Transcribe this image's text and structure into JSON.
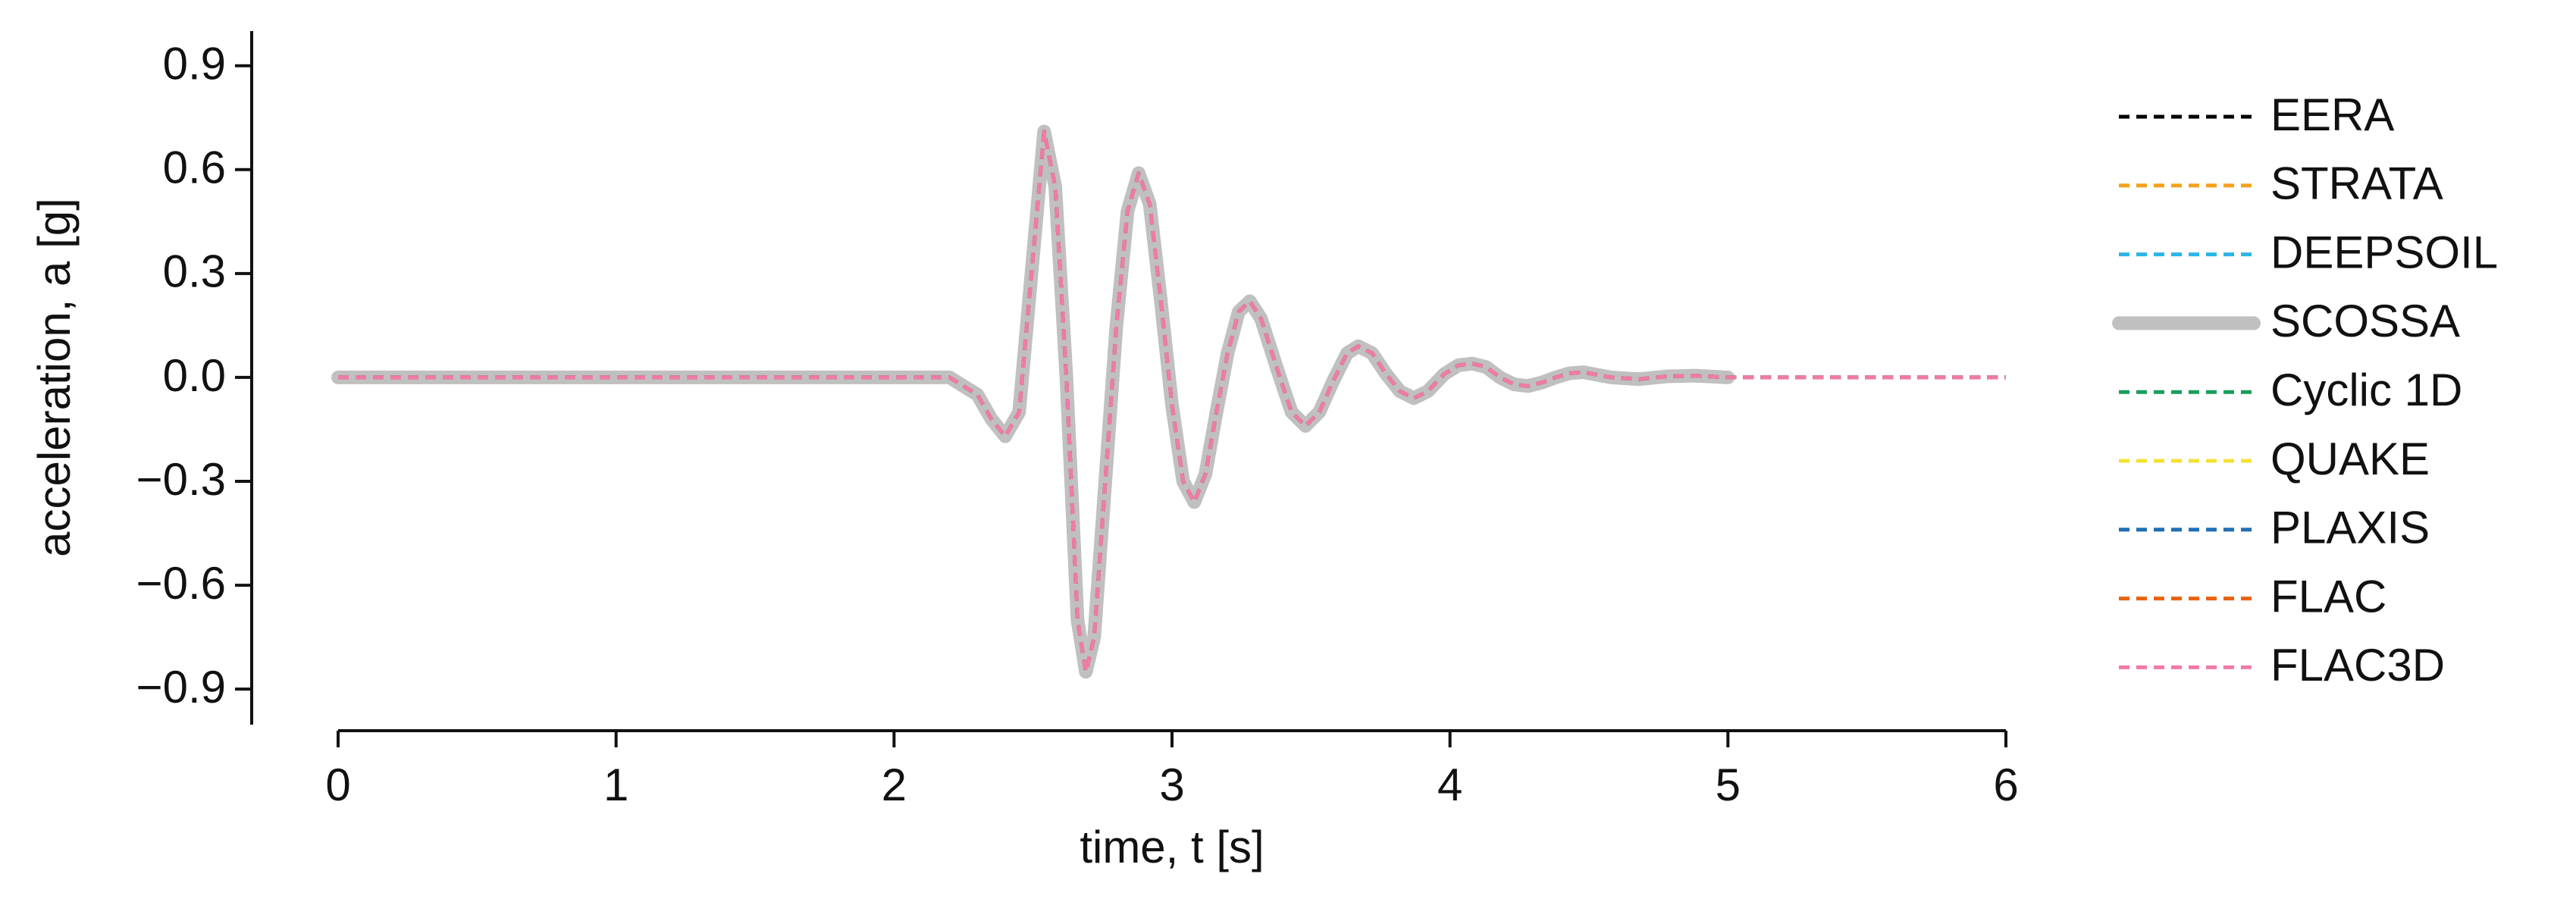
{
  "chart_data": {
    "type": "line",
    "xlabel": "time, t [s]",
    "ylabel": "acceleration, a [g]",
    "xlim": [
      0,
      6
    ],
    "xticks": [
      0,
      1,
      2,
      3,
      4,
      5,
      6
    ],
    "ylim": [
      -1.02,
      1.0
    ],
    "yticks": [
      {
        "value": 0.9,
        "label": "0.9"
      },
      {
        "value": 0.6,
        "label": "0.6"
      },
      {
        "value": 0.3,
        "label": "0.3"
      },
      {
        "value": 0,
        "label": "0.0"
      },
      {
        "value": -0.3,
        "label": "−0.3"
      },
      {
        "value": -0.6,
        "label": "−0.6"
      },
      {
        "value": -0.9,
        "label": "−0.9"
      }
    ],
    "legend": "right",
    "x": [
      0,
      0.5,
      1,
      1.5,
      2,
      2.2,
      2.3,
      2.35,
      2.4,
      2.45,
      2.5,
      2.54,
      2.58,
      2.62,
      2.66,
      2.69,
      2.72,
      2.76,
      2.8,
      2.84,
      2.88,
      2.92,
      2.96,
      3.0,
      3.04,
      3.08,
      3.12,
      3.16,
      3.2,
      3.24,
      3.28,
      3.32,
      3.38,
      3.43,
      3.48,
      3.53,
      3.58,
      3.63,
      3.67,
      3.72,
      3.77,
      3.82,
      3.87,
      3.92,
      3.98,
      4.03,
      4.08,
      4.13,
      4.18,
      4.23,
      4.28,
      4.33,
      4.38,
      4.43,
      4.48,
      4.58,
      4.68,
      4.78,
      4.88,
      5.0,
      5.5,
      6.0
    ],
    "series": [
      {
        "name": "EERA",
        "color": "#000000",
        "linestyle": "dashed",
        "values": [
          0,
          0,
          0,
          0,
          0,
          0,
          -0.05,
          -0.12,
          -0.17,
          -0.1,
          0.35,
          0.71,
          0.55,
          0,
          -0.7,
          -0.85,
          -0.75,
          -0.3,
          0.15,
          0.48,
          0.59,
          0.5,
          0.22,
          -0.08,
          -0.3,
          -0.36,
          -0.28,
          -0.1,
          0.07,
          0.19,
          0.22,
          0.17,
          0.02,
          -0.1,
          -0.14,
          -0.1,
          -0.01,
          0.07,
          0.09,
          0.07,
          0.01,
          -0.04,
          -0.06,
          -0.04,
          0.01,
          0.035,
          0.04,
          0.03,
          0,
          -0.02,
          -0.025,
          -0.015,
          0,
          0.012,
          0.015,
          0,
          -0.005,
          0.003,
          0.005,
          0,
          0,
          0
        ]
      },
      {
        "name": "STRATA",
        "color": "#f5a21f",
        "linestyle": "dashed",
        "values": [
          0,
          0,
          0,
          0,
          0,
          0,
          -0.05,
          -0.12,
          -0.17,
          -0.1,
          0.35,
          0.71,
          0.55,
          0,
          -0.7,
          -0.85,
          -0.75,
          -0.3,
          0.15,
          0.48,
          0.59,
          0.5,
          0.22,
          -0.08,
          -0.3,
          -0.36,
          -0.28,
          -0.1,
          0.07,
          0.19,
          0.22,
          0.17,
          0.02,
          -0.1,
          -0.14,
          -0.1,
          -0.01,
          0.07,
          0.09,
          0.07,
          0.01,
          -0.04,
          -0.06,
          -0.04,
          0.01,
          0.035,
          0.04,
          0.03,
          0,
          -0.02,
          -0.025,
          -0.015,
          0,
          0.012,
          0.015,
          0,
          -0.005,
          0.003,
          0.005,
          0,
          0,
          0
        ]
      },
      {
        "name": "DEEPSOIL",
        "color": "#2bb5e8",
        "linestyle": "dashed",
        "values": [
          0,
          0,
          0,
          0,
          0,
          0,
          -0.05,
          -0.12,
          -0.17,
          -0.1,
          0.35,
          0.71,
          0.55,
          0,
          -0.7,
          -0.85,
          -0.75,
          -0.3,
          0.15,
          0.48,
          0.59,
          0.5,
          0.22,
          -0.08,
          -0.3,
          -0.36,
          -0.28,
          -0.1,
          0.07,
          0.19,
          0.22,
          0.17,
          0.02,
          -0.1,
          -0.14,
          -0.1,
          -0.01,
          0.07,
          0.09,
          0.07,
          0.01,
          -0.04,
          -0.06,
          -0.04,
          0.01,
          0.035,
          0.04,
          0.03,
          0,
          -0.02,
          -0.025,
          -0.015,
          0,
          0.012,
          0.015,
          0,
          -0.005,
          0.003,
          0.005,
          0,
          0,
          0
        ]
      },
      {
        "name": "SCOSSA",
        "color": "#c0c0c0",
        "linestyle": "solid",
        "values": [
          0,
          0,
          0,
          0,
          0,
          0,
          -0.05,
          -0.12,
          -0.17,
          -0.1,
          0.35,
          0.71,
          0.55,
          0,
          -0.7,
          -0.85,
          -0.75,
          -0.3,
          0.15,
          0.48,
          0.59,
          0.5,
          0.22,
          -0.08,
          -0.3,
          -0.36,
          -0.28,
          -0.1,
          0.07,
          0.19,
          0.22,
          0.17,
          0.02,
          -0.1,
          -0.14,
          -0.1,
          -0.01,
          0.07,
          0.09,
          0.07,
          0.01,
          -0.04,
          -0.06,
          -0.04,
          0.01,
          0.035,
          0.04,
          0.03,
          0,
          -0.02,
          -0.025,
          -0.015,
          0,
          0.012,
          0.015,
          0,
          -0.005,
          0.003,
          0.005,
          0,
          null,
          null
        ]
      },
      {
        "name": "Cyclic 1D",
        "color": "#1a9e5c",
        "linestyle": "dashed",
        "values": [
          0,
          0,
          0,
          0,
          0,
          0,
          -0.05,
          -0.12,
          -0.17,
          -0.1,
          0.35,
          0.71,
          0.55,
          0,
          -0.7,
          -0.85,
          -0.75,
          -0.3,
          0.15,
          0.48,
          0.59,
          0.5,
          0.22,
          -0.08,
          -0.3,
          -0.36,
          -0.28,
          -0.1,
          0.07,
          0.19,
          0.22,
          0.17,
          0.02,
          -0.1,
          -0.14,
          -0.1,
          -0.01,
          0.07,
          0.09,
          0.07,
          0.01,
          -0.04,
          -0.06,
          -0.04,
          0.01,
          0.035,
          0.04,
          0.03,
          0,
          -0.02,
          -0.025,
          -0.015,
          0,
          0.012,
          0.015,
          0,
          -0.005,
          0.003,
          0.005,
          0,
          0,
          0
        ]
      },
      {
        "name": "QUAKE",
        "color": "#f2e234",
        "linestyle": "dashed",
        "values": [
          0,
          0,
          0,
          0,
          0,
          0,
          -0.05,
          -0.12,
          -0.17,
          -0.1,
          0.35,
          0.71,
          0.55,
          0,
          -0.7,
          -0.85,
          -0.75,
          -0.3,
          0.15,
          0.48,
          0.59,
          0.5,
          0.22,
          -0.08,
          -0.3,
          -0.36,
          -0.28,
          -0.1,
          0.07,
          0.19,
          0.22,
          0.17,
          0.02,
          -0.1,
          -0.14,
          -0.1,
          -0.01,
          0.07,
          0.09,
          0.07,
          0.01,
          -0.04,
          -0.06,
          -0.04,
          0.01,
          0.035,
          0.04,
          0.03,
          0,
          -0.02,
          -0.025,
          -0.015,
          0,
          0.012,
          0.015,
          0,
          -0.005,
          0.003,
          0.005,
          0,
          0,
          0
        ]
      },
      {
        "name": "PLAXIS",
        "color": "#1f6fb5",
        "linestyle": "dashed",
        "values": [
          0,
          0,
          0,
          0,
          0,
          0,
          -0.05,
          -0.12,
          -0.17,
          -0.1,
          0.35,
          0.71,
          0.55,
          0,
          -0.7,
          -0.85,
          -0.75,
          -0.3,
          0.15,
          0.48,
          0.59,
          0.5,
          0.22,
          -0.08,
          -0.3,
          -0.36,
          -0.28,
          -0.1,
          0.07,
          0.19,
          0.22,
          0.17,
          0.02,
          -0.1,
          -0.14,
          -0.1,
          -0.01,
          0.07,
          0.09,
          0.07,
          0.01,
          -0.04,
          -0.06,
          -0.04,
          0.01,
          0.035,
          0.04,
          0.03,
          0,
          -0.02,
          -0.025,
          -0.015,
          0,
          0.012,
          0.015,
          0,
          -0.005,
          0.003,
          0.005,
          0,
          0,
          0
        ]
      },
      {
        "name": "FLAC",
        "color": "#e8620c",
        "linestyle": "dashed",
        "values": [
          0,
          0,
          0,
          0,
          0,
          0,
          -0.05,
          -0.12,
          -0.17,
          -0.1,
          0.35,
          0.71,
          0.55,
          0,
          -0.7,
          -0.85,
          -0.75,
          -0.3,
          0.15,
          0.48,
          0.59,
          0.5,
          0.22,
          -0.08,
          -0.3,
          -0.36,
          -0.28,
          -0.1,
          0.07,
          0.19,
          0.22,
          0.17,
          0.02,
          -0.1,
          -0.14,
          -0.1,
          -0.01,
          0.07,
          0.09,
          0.07,
          0.01,
          -0.04,
          -0.06,
          -0.04,
          0.01,
          0.035,
          0.04,
          0.03,
          0,
          -0.02,
          -0.025,
          -0.015,
          0,
          0.012,
          0.015,
          0,
          -0.005,
          0.003,
          0.005,
          0,
          0,
          0
        ]
      },
      {
        "name": "FLAC3D",
        "color": "#f07aa8",
        "linestyle": "dashed",
        "values": [
          0,
          0,
          0,
          0,
          0,
          0,
          -0.05,
          -0.12,
          -0.17,
          -0.1,
          0.35,
          0.71,
          0.55,
          0,
          -0.7,
          -0.85,
          -0.75,
          -0.3,
          0.15,
          0.48,
          0.59,
          0.5,
          0.22,
          -0.08,
          -0.3,
          -0.36,
          -0.28,
          -0.1,
          0.07,
          0.19,
          0.22,
          0.17,
          0.02,
          -0.1,
          -0.14,
          -0.1,
          -0.01,
          0.07,
          0.09,
          0.07,
          0.01,
          -0.04,
          -0.06,
          -0.04,
          0.01,
          0.035,
          0.04,
          0.03,
          0,
          -0.02,
          -0.025,
          -0.015,
          0,
          0.012,
          0.015,
          0,
          -0.005,
          0.003,
          0.005,
          0,
          0,
          0
        ]
      }
    ]
  }
}
